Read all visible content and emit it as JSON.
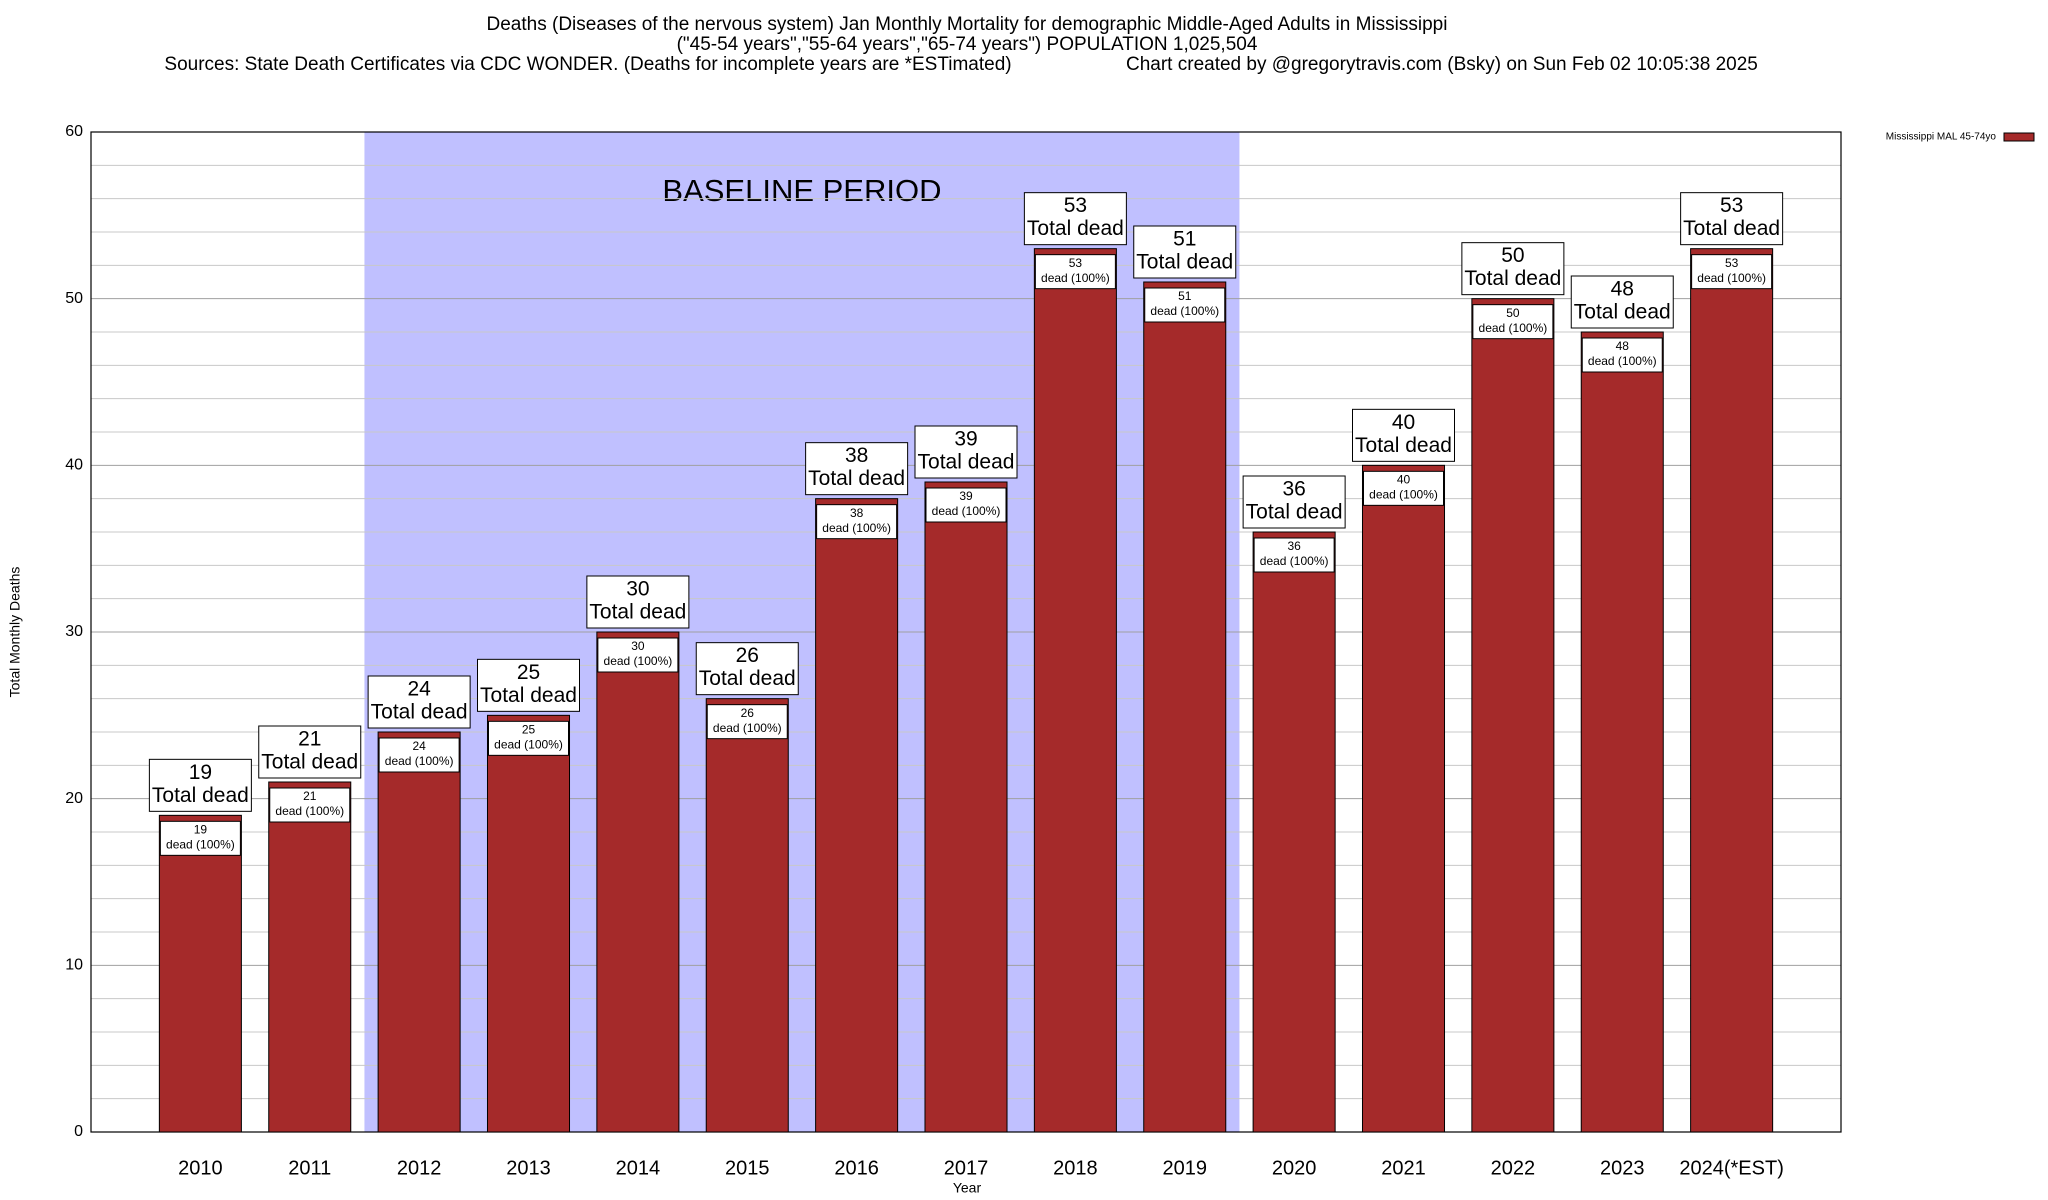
{
  "chart_data": {
    "type": "bar",
    "title": "Deaths (Diseases of the nervous system) Jan Monthly Mortality for demographic Middle-Aged Adults in Mississippi",
    "subtitle": "(\"45-54 years\",\"55-64 years\",\"65-74 years\") POPULATION 1,025,504",
    "source": "Sources: State Death Certificates via CDC WONDER. (Deaths for incomplete years are *ESTimated)",
    "credit": "Chart created by @gregorytravis.com (Bsky) on Sun Feb 02 10:05:38 2025",
    "x_label": "Year",
    "y_label": "Total Monthly Deaths",
    "categories": [
      "2010",
      "2011",
      "2012",
      "2013",
      "2014",
      "2015",
      "2016",
      "2017",
      "2018",
      "2019",
      "2020",
      "2021",
      "2022",
      "2023",
      "2024(*EST)"
    ],
    "series": [
      {
        "name": "Mississippi MAL 45-74yo",
        "color": "#a52a2a",
        "values": [
          19,
          21,
          24,
          25,
          30,
          26,
          38,
          39,
          53,
          51,
          36,
          40,
          50,
          48,
          53
        ]
      }
    ],
    "total_label": "Total dead",
    "share_label": "dead (100%)",
    "baseline": {
      "label": "BASELINE PERIOD",
      "from": "2012",
      "to": "2019",
      "color": "#c0c0ff"
    },
    "ylim": [
      0,
      60
    ],
    "yticks": [
      0,
      10,
      20,
      30,
      40,
      50,
      60
    ],
    "minor_yticks": [
      2,
      4,
      6,
      8,
      12,
      14,
      16,
      18,
      22,
      24,
      26,
      28,
      32,
      34,
      36,
      38,
      42,
      44,
      46,
      48,
      52,
      54,
      56,
      58
    ],
    "grid": true,
    "legend": "top-right"
  }
}
